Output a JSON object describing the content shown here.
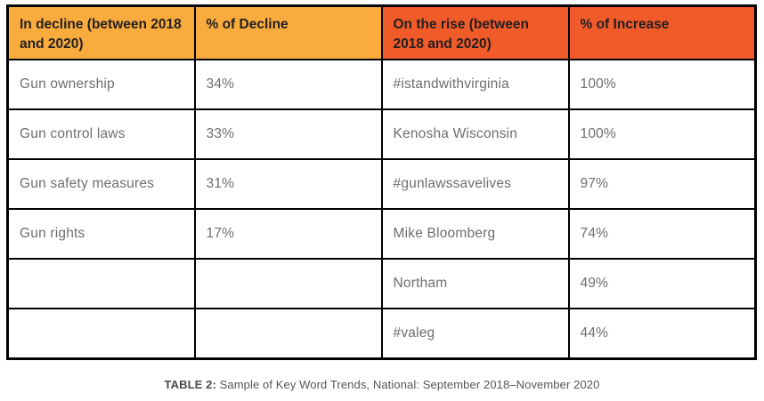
{
  "chart_data": {
    "type": "table",
    "title": "TABLE 2: Sample of Key Word Trends, National: September 2018–November 2020",
    "columns": [
      "In decline (between 2018 and 2020)",
      "% of Decline",
      "On the rise (between 2018 and 2020)",
      "% of Increase"
    ],
    "rows": [
      [
        "Gun ownership",
        "34%",
        "#istandwithvirginia",
        "100%"
      ],
      [
        "Gun control laws",
        "33%",
        "Kenosha Wisconsin",
        "100%"
      ],
      [
        "Gun safety measures",
        "31%",
        "#gunlawssavelives",
        "97%"
      ],
      [
        "Gun rights",
        "17%",
        "Mike Bloomberg",
        "74%"
      ],
      [
        "",
        "",
        "Northam",
        "49%"
      ],
      [
        "",
        "",
        "#valeg",
        "44%"
      ]
    ],
    "decline_values_pct": [
      34,
      33,
      31,
      17
    ],
    "increase_values_pct": [
      100,
      100,
      97,
      74,
      49,
      44
    ]
  },
  "caption": {
    "label": "TABLE 2:",
    "text": " Sample of Key Word Trends, National: September 2018–November 2020"
  },
  "colors": {
    "decline_header_bg": "#F9AC3D",
    "rise_header_bg": "#F15A29",
    "header_text": "#231F20",
    "body_text": "#6D6E71",
    "border": "#000000"
  }
}
